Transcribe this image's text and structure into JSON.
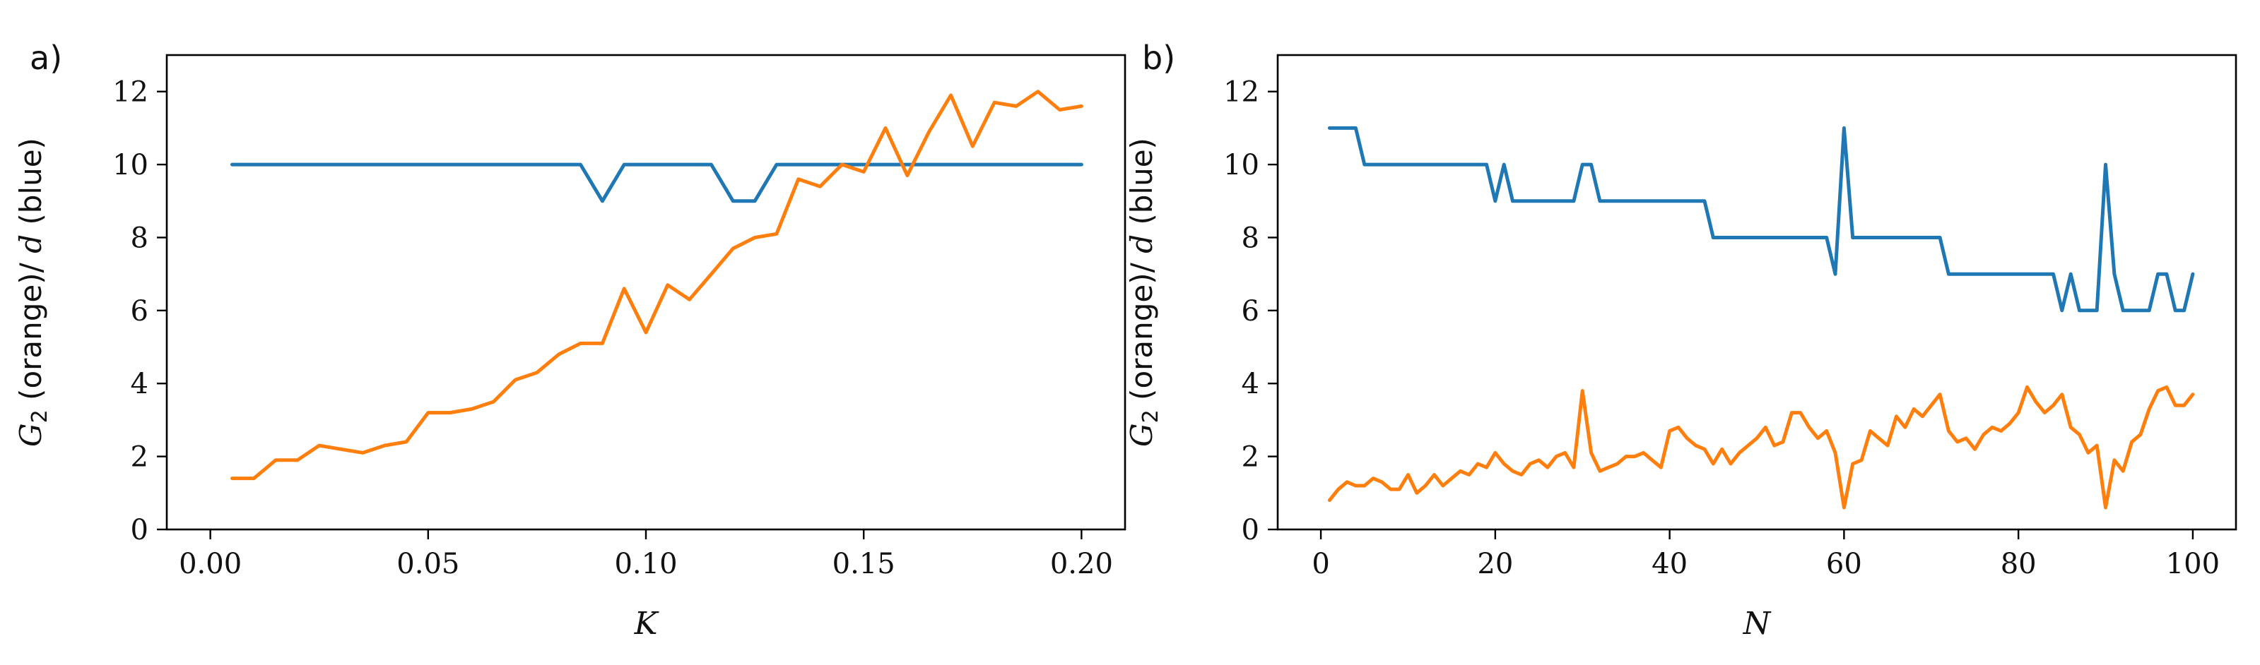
{
  "chart_data": [
    {
      "type": "line",
      "panel_label": "a)",
      "xlabel": "K",
      "ylabel_prefix": "G",
      "ylabel_sub": "2",
      "ylabel_mid": " (orange)/ ",
      "ylabel_var": "d",
      "ylabel_suffix": " (blue)",
      "xlim": [
        -0.01,
        0.21
      ],
      "ylim": [
        0,
        13
      ],
      "xticks": [
        0.0,
        0.05,
        0.1,
        0.15,
        0.2
      ],
      "xtick_labels": [
        "0.00",
        "0.05",
        "0.10",
        "0.15",
        "0.20"
      ],
      "yticks": [
        0,
        2,
        4,
        6,
        8,
        10,
        12
      ],
      "ytick_labels": [
        "0",
        "2",
        "4",
        "6",
        "8",
        "10",
        "12"
      ],
      "x": [
        0.005,
        0.01,
        0.015,
        0.02,
        0.025,
        0.03,
        0.035,
        0.04,
        0.045,
        0.05,
        0.055,
        0.06,
        0.065,
        0.07,
        0.075,
        0.08,
        0.085,
        0.09,
        0.095,
        0.1,
        0.105,
        0.11,
        0.115,
        0.12,
        0.125,
        0.13,
        0.135,
        0.14,
        0.145,
        0.15,
        0.155,
        0.16,
        0.165,
        0.17,
        0.175,
        0.18,
        0.185,
        0.19,
        0.195,
        0.2
      ],
      "series": [
        {
          "name": "d (blue)",
          "color": "#1f77b4",
          "values": [
            10,
            10,
            10,
            10,
            10,
            10,
            10,
            10,
            10,
            10,
            10,
            10,
            10,
            10,
            10,
            10,
            10,
            9,
            10,
            10,
            10,
            10,
            10,
            9,
            9,
            10,
            10,
            10,
            10,
            10,
            10,
            10,
            10,
            10,
            10,
            10,
            10,
            10,
            10,
            10
          ]
        },
        {
          "name": "G2 (orange)",
          "color": "#ff7f0e",
          "values": [
            1.4,
            1.4,
            1.9,
            1.9,
            2.3,
            2.2,
            2.1,
            2.3,
            2.4,
            3.2,
            3.2,
            3.3,
            3.5,
            4.1,
            4.3,
            4.8,
            5.1,
            5.1,
            6.6,
            5.4,
            6.7,
            6.3,
            7.0,
            7.7,
            8.0,
            8.1,
            9.6,
            9.4,
            10.0,
            9.8,
            11.0,
            9.7,
            10.9,
            11.9,
            10.5,
            11.7,
            11.6,
            12.0,
            11.5,
            11.6
          ]
        }
      ]
    },
    {
      "type": "line",
      "panel_label": "b)",
      "xlabel": "N",
      "ylabel_prefix": "G",
      "ylabel_sub": "2",
      "ylabel_mid": " (orange)/ ",
      "ylabel_var": "d",
      "ylabel_suffix": " (blue)",
      "xlim": [
        -4.95,
        104.95
      ],
      "ylim": [
        0,
        13
      ],
      "xticks": [
        0,
        20,
        40,
        60,
        80,
        100
      ],
      "xtick_labels": [
        "0",
        "20",
        "40",
        "60",
        "80",
        "100"
      ],
      "yticks": [
        0,
        2,
        4,
        6,
        8,
        10,
        12
      ],
      "ytick_labels": [
        "0",
        "2",
        "4",
        "6",
        "8",
        "10",
        "12"
      ],
      "x": [
        1,
        2,
        3,
        4,
        5,
        6,
        7,
        8,
        9,
        10,
        11,
        12,
        13,
        14,
        15,
        16,
        17,
        18,
        19,
        20,
        21,
        22,
        23,
        24,
        25,
        26,
        27,
        28,
        29,
        30,
        31,
        32,
        33,
        34,
        35,
        36,
        37,
        38,
        39,
        40,
        41,
        42,
        43,
        44,
        45,
        46,
        47,
        48,
        49,
        50,
        51,
        52,
        53,
        54,
        55,
        56,
        57,
        58,
        59,
        60,
        61,
        62,
        63,
        64,
        65,
        66,
        67,
        68,
        69,
        70,
        71,
        72,
        73,
        74,
        75,
        76,
        77,
        78,
        79,
        80,
        81,
        82,
        83,
        84,
        85,
        86,
        87,
        88,
        89,
        90,
        91,
        92,
        93,
        94,
        95,
        96,
        97,
        98,
        99,
        100
      ],
      "series": [
        {
          "name": "d (blue)",
          "color": "#1f77b4",
          "values": [
            11,
            11,
            11,
            11,
            10,
            10,
            10,
            10,
            10,
            10,
            10,
            10,
            10,
            10,
            10,
            10,
            10,
            10,
            10,
            9,
            10,
            9,
            9,
            9,
            9,
            9,
            9,
            9,
            9,
            10,
            10,
            9,
            9,
            9,
            9,
            9,
            9,
            9,
            9,
            9,
            9,
            9,
            9,
            9,
            8,
            8,
            8,
            8,
            8,
            8,
            8,
            8,
            8,
            8,
            8,
            8,
            8,
            8,
            7,
            11,
            8,
            8,
            8,
            8,
            8,
            8,
            8,
            8,
            8,
            8,
            8,
            7,
            7,
            7,
            7,
            7,
            7,
            7,
            7,
            7,
            7,
            7,
            7,
            7,
            6,
            7,
            6,
            6,
            6,
            10,
            7,
            6,
            6,
            6,
            6,
            7,
            7,
            6,
            6,
            7
          ]
        },
        {
          "name": "G2 (orange)",
          "color": "#ff7f0e",
          "values": [
            0.8,
            1.1,
            1.3,
            1.2,
            1.2,
            1.4,
            1.3,
            1.1,
            1.1,
            1.5,
            1.0,
            1.2,
            1.5,
            1.2,
            1.4,
            1.6,
            1.5,
            1.8,
            1.7,
            2.1,
            1.8,
            1.6,
            1.5,
            1.8,
            1.9,
            1.7,
            2.0,
            2.1,
            1.7,
            3.8,
            2.1,
            1.6,
            1.7,
            1.8,
            2.0,
            2.0,
            2.1,
            1.9,
            1.7,
            2.7,
            2.8,
            2.5,
            2.3,
            2.2,
            1.8,
            2.2,
            1.8,
            2.1,
            2.3,
            2.5,
            2.8,
            2.3,
            2.4,
            3.2,
            3.2,
            2.8,
            2.5,
            2.7,
            2.1,
            0.6,
            1.8,
            1.9,
            2.7,
            2.5,
            2.3,
            3.1,
            2.8,
            3.3,
            3.1,
            3.4,
            3.7,
            2.7,
            2.4,
            2.5,
            2.2,
            2.6,
            2.8,
            2.7,
            2.9,
            3.2,
            3.9,
            3.5,
            3.2,
            3.4,
            3.7,
            2.8,
            2.6,
            2.1,
            2.3,
            0.6,
            1.9,
            1.6,
            2.4,
            2.6,
            3.3,
            3.8,
            3.9,
            3.4,
            3.4,
            3.7
          ]
        }
      ]
    }
  ]
}
